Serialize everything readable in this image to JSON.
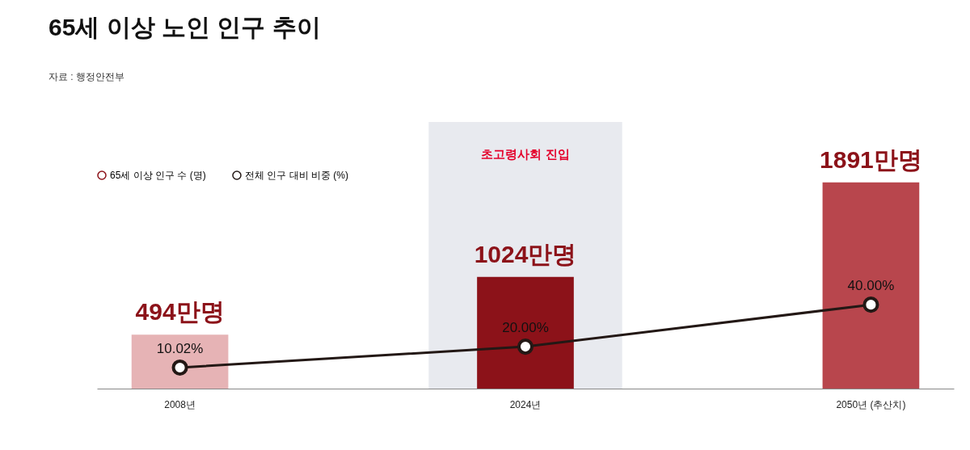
{
  "chart_data": {
    "type": "bar",
    "title": "65세 이상 노인 인구 추이",
    "annotations": [
      "자료 : 행정안전부"
    ],
    "categories": [
      "2008년",
      "2024년",
      "2050년 (추산치)"
    ],
    "legend": "top left",
    "bands": [
      {
        "axis": "x",
        "from": "2024년",
        "to": "2024년",
        "label": "초고령사회 진입",
        "color": "#e8eaef"
      }
    ],
    "series": [
      {
        "name": "65세 이상 인구 수 (명)",
        "color": "#8c1219",
        "colors": [
          "#e6b3b5",
          "#8c1219",
          "#b8464d"
        ],
        "values": [
          494,
          1024,
          1891
        ],
        "value_labels": [
          "494만명",
          "1024만명",
          "1891만명"
        ]
      },
      {
        "name": "전체 인구 대비 비중 (%)",
        "type": "line",
        "axis": "y2",
        "color": "#231815",
        "marker": "circle",
        "values": [
          10.02,
          20.0,
          40.0
        ],
        "value_labels": [
          "10.02%",
          "20.00%",
          "40.00%"
        ]
      }
    ]
  }
}
